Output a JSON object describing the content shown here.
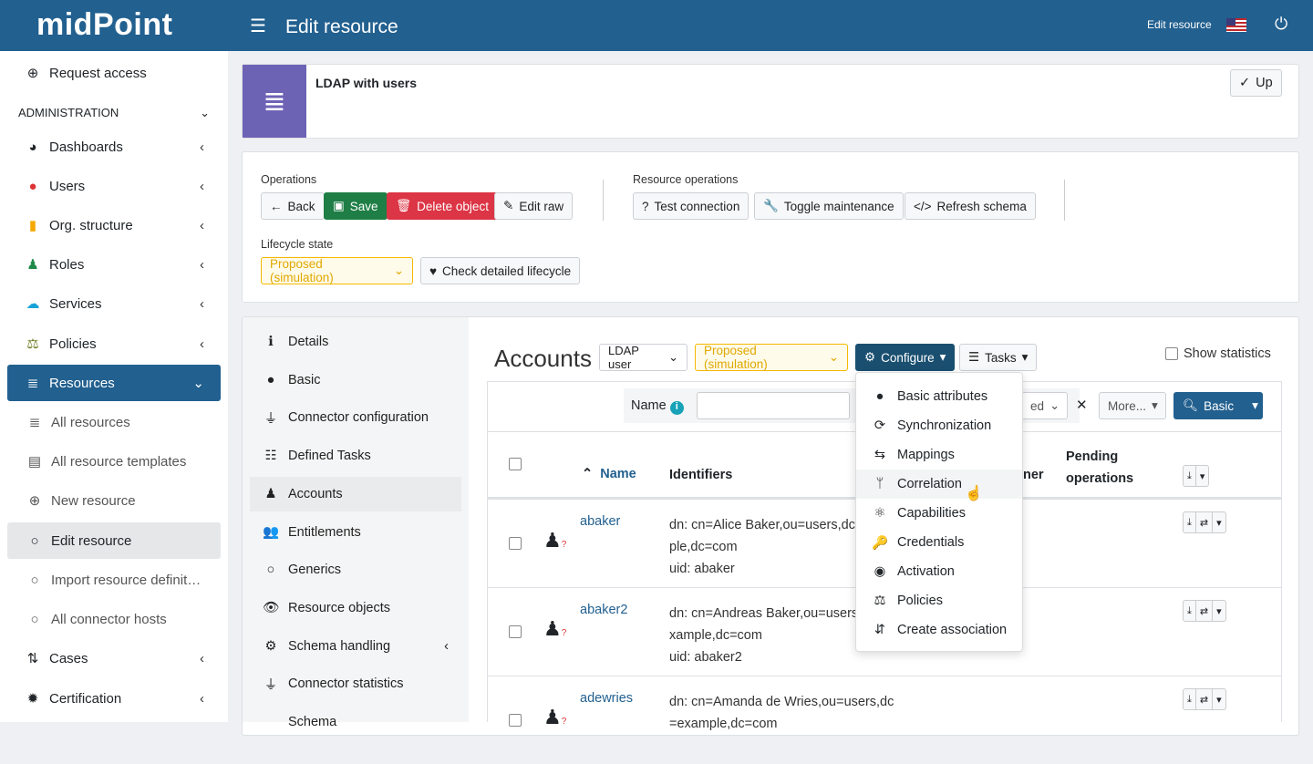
{
  "header": {
    "logo": "midPoint",
    "title": "Edit resource",
    "right_label": "Edit resource",
    "menu_icon": "hamburger-icon",
    "flag_icon": "us-flag-icon",
    "power_icon": "power-icon"
  },
  "sidebar": {
    "request_access": "Request access",
    "section": "ADMINISTRATION",
    "items": [
      {
        "label": "Dashboards",
        "icon": "dashboard-icon"
      },
      {
        "label": "Users",
        "icon": "user-icon"
      },
      {
        "label": "Org. structure",
        "icon": "building-icon"
      },
      {
        "label": "Roles",
        "icon": "role-icon"
      },
      {
        "label": "Services",
        "icon": "cloud-icon"
      },
      {
        "label": "Policies",
        "icon": "scale-icon"
      },
      {
        "label": "Resources",
        "icon": "database-icon"
      }
    ],
    "sub": [
      {
        "label": "All resources"
      },
      {
        "label": "All resource templates"
      },
      {
        "label": "New resource"
      },
      {
        "label": "Edit resource"
      },
      {
        "label": "Import resource definit…"
      },
      {
        "label": "All connector hosts"
      }
    ],
    "bottom": [
      {
        "label": "Cases"
      },
      {
        "label": "Certification"
      }
    ]
  },
  "resource": {
    "name": "LDAP with users",
    "up_label": "Up"
  },
  "operations": {
    "label": "Operations",
    "back": "Back",
    "save": "Save",
    "delete": "Delete object",
    "edit_raw": "Edit raw",
    "resource_label": "Resource operations",
    "test": "Test connection",
    "toggle": "Toggle maintenance",
    "refresh": "Refresh schema",
    "lifecycle_label": "Lifecycle state",
    "lifecycle_value": "Proposed (simulation)",
    "check_lifecycle": "Check detailed lifecycle"
  },
  "nav": [
    "Details",
    "Basic",
    "Connector configuration",
    "Defined Tasks",
    "Accounts",
    "Entitlements",
    "Generics",
    "Resource objects",
    "Schema handling",
    "Connector statistics",
    "Schema"
  ],
  "accounts": {
    "title": "Accounts",
    "object_class": "LDAP user",
    "lifecycle": "Proposed (simulation)",
    "configure": "Configure",
    "tasks": "Tasks",
    "show_statistics": "Show statistics",
    "search": {
      "name_label": "Name",
      "name_value": "",
      "partial_select": "ed",
      "more": "More...",
      "basic": "Basic"
    },
    "columns": {
      "name": "Name",
      "identifiers": "Identifiers",
      "owner_partial": "ner",
      "pending": "Pending",
      "operations": "operations"
    },
    "rows": [
      {
        "name": "abaker",
        "id1": "dn: cn=Alice Baker,ou=users,dc",
        "id2": "ple,dc=com",
        "id3": "uid: abaker"
      },
      {
        "name": "abaker2",
        "id1": "dn: cn=Andreas Baker,ou=users",
        "id2": "xample,dc=com",
        "id3": "uid: abaker2"
      },
      {
        "name": "adewries",
        "id1": "dn: cn=Amanda de Wries,ou=users,dc",
        "id2": "=example,dc=com",
        "id3": ""
      }
    ]
  },
  "configure_menu": [
    "Basic attributes",
    "Synchronization",
    "Mappings",
    "Correlation",
    "Capabilities",
    "Credentials",
    "Activation",
    "Policies",
    "Create association"
  ],
  "colors": {
    "header": "#22608f",
    "save": "#1e7e45",
    "delete": "#dc3545",
    "warning": "#f5b800",
    "configure": "#1a4f70"
  }
}
